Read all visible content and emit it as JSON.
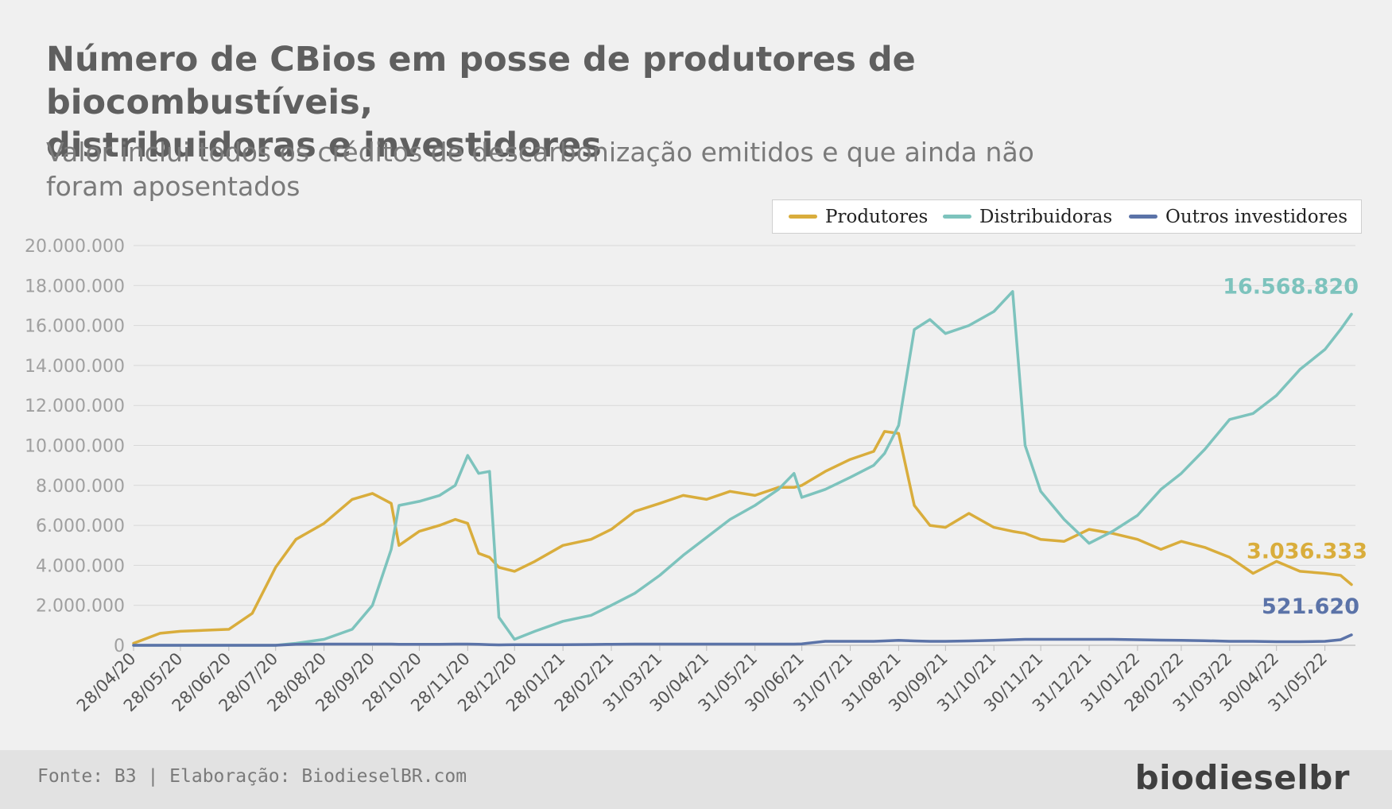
{
  "title": {
    "line1": "Número de CBios em posse de produtores de biocombustíveis,",
    "line2": "distribuidoras e investidores"
  },
  "subtitle": {
    "line1": "Valor inclui todos os créditos de descarbonização emitidos e que ainda não",
    "line2": "foram aposentados"
  },
  "legend": {
    "produtores": "Produtores",
    "distribuidoras": "Distribuidoras",
    "outros": "Outros investidores"
  },
  "colors": {
    "produtores": "#d9ad3c",
    "distribuidoras": "#7dc3bd",
    "outros": "#5b73a8",
    "grid": "#d8d8d8",
    "tick_text": "#a0a0a0"
  },
  "footer": {
    "source": "Fonte: B3 | Elaboração: BiodieselBR.com",
    "logo": "biodieselbr"
  },
  "chart_data": {
    "type": "line",
    "title": "Número de CBios em posse de produtores de biocombustíveis, distribuidoras e investidores",
    "subtitle": "Valor inclui todos os créditos de descarbonização emitidos e que ainda não foram aposentados",
    "xlabel": "",
    "ylabel": "",
    "ylim": [
      0,
      20000000
    ],
    "grid": true,
    "legend_position": "top-right",
    "y_ticks": [
      {
        "value": 0,
        "label": "0"
      },
      {
        "value": 2000000,
        "label": "2.000.000"
      },
      {
        "value": 4000000,
        "label": "4.000.000"
      },
      {
        "value": 6000000,
        "label": "6.000.000"
      },
      {
        "value": 8000000,
        "label": "8.000.000"
      },
      {
        "value": 10000000,
        "label": "10.000.000"
      },
      {
        "value": 12000000,
        "label": "12.000.000"
      },
      {
        "value": 14000000,
        "label": "14.000.000"
      },
      {
        "value": 16000000,
        "label": "16.000.000"
      },
      {
        "value": 18000000,
        "label": "18.000.000"
      },
      {
        "value": 20000000,
        "label": "20.000.000"
      }
    ],
    "x_ticks": [
      "28/04/20",
      "28/05/20",
      "28/06/20",
      "28/07/20",
      "28/08/20",
      "28/09/20",
      "28/10/20",
      "28/11/20",
      "28/12/20",
      "28/01/21",
      "28/02/21",
      "31/03/21",
      "30/04/21",
      "31/05/21",
      "30/06/21",
      "31/07/21",
      "31/08/21",
      "30/09/21",
      "31/10/21",
      "30/11/21",
      "31/12/21",
      "31/01/22",
      "28/02/22",
      "31/03/22",
      "30/04/22",
      "31/05/22"
    ],
    "x": [
      "28/04/20",
      "15/05/20",
      "28/05/20",
      "28/06/20",
      "13/07/20",
      "28/07/20",
      "10/08/20",
      "28/08/20",
      "15/09/20",
      "28/09/20",
      "10/10/20",
      "15/10/20",
      "28/10/20",
      "10/11/20",
      "20/11/20",
      "28/11/20",
      "05/12/20",
      "12/12/20",
      "18/12/20",
      "28/12/20",
      "10/01/21",
      "28/01/21",
      "15/02/21",
      "28/02/21",
      "15/03/21",
      "31/03/21",
      "15/04/21",
      "30/04/21",
      "15/05/21",
      "31/05/21",
      "15/06/21",
      "25/06/21",
      "30/06/21",
      "15/07/21",
      "31/07/21",
      "15/08/21",
      "22/08/21",
      "31/08/21",
      "10/09/21",
      "20/09/21",
      "30/09/21",
      "15/10/21",
      "31/10/21",
      "12/11/21",
      "20/11/21",
      "30/11/21",
      "15/12/21",
      "31/12/21",
      "15/01/22",
      "31/01/22",
      "15/02/22",
      "28/02/22",
      "15/03/22",
      "31/03/22",
      "15/04/22",
      "30/04/22",
      "15/05/22",
      "31/05/22",
      "10/06/22",
      "17/06/22"
    ],
    "series": [
      {
        "name": "Produtores",
        "color": "#d9ad3c",
        "end_label": "3.036.333",
        "values": [
          100000,
          600000,
          700000,
          800000,
          1600000,
          3900000,
          5300000,
          6100000,
          7300000,
          7600000,
          7100000,
          5000000,
          5700000,
          6000000,
          6300000,
          6100000,
          4600000,
          4400000,
          3900000,
          3700000,
          4200000,
          5000000,
          5300000,
          5800000,
          6700000,
          7100000,
          7500000,
          7300000,
          7700000,
          7500000,
          7900000,
          7900000,
          8000000,
          8700000,
          9300000,
          9700000,
          10700000,
          10600000,
          7000000,
          6000000,
          5900000,
          6600000,
          5900000,
          5700000,
          5600000,
          5300000,
          5200000,
          5800000,
          5600000,
          5300000,
          4800000,
          5200000,
          4900000,
          4400000,
          3600000,
          4200000,
          3700000,
          3600000,
          3500000,
          3036333
        ]
      },
      {
        "name": "Distribuidoras",
        "color": "#7dc3bd",
        "end_label": "16.568.820",
        "values": [
          0,
          0,
          0,
          0,
          0,
          0,
          100000,
          300000,
          800000,
          2000000,
          4800000,
          7000000,
          7200000,
          7500000,
          8000000,
          9500000,
          8600000,
          8700000,
          1400000,
          300000,
          700000,
          1200000,
          1500000,
          2000000,
          2600000,
          3500000,
          4500000,
          5400000,
          6300000,
          7000000,
          7800000,
          8600000,
          7400000,
          7800000,
          8400000,
          9000000,
          9600000,
          11000000,
          15800000,
          16300000,
          15600000,
          16000000,
          16700000,
          17700000,
          10000000,
          7700000,
          6300000,
          5100000,
          5700000,
          6500000,
          7800000,
          8600000,
          9800000,
          11300000,
          11600000,
          12500000,
          13800000,
          14800000,
          15800000,
          16568820
        ]
      },
      {
        "name": "Outros investidores",
        "color": "#5b73a8",
        "end_label": "521.620",
        "values": [
          0,
          0,
          0,
          0,
          0,
          0,
          50000,
          60000,
          60000,
          60000,
          60000,
          50000,
          50000,
          50000,
          60000,
          60000,
          50000,
          30000,
          20000,
          30000,
          30000,
          30000,
          40000,
          50000,
          60000,
          60000,
          60000,
          60000,
          60000,
          60000,
          60000,
          60000,
          70000,
          200000,
          200000,
          200000,
          220000,
          250000,
          220000,
          200000,
          200000,
          220000,
          250000,
          280000,
          300000,
          300000,
          300000,
          300000,
          300000,
          280000,
          260000,
          250000,
          230000,
          200000,
          200000,
          180000,
          180000,
          200000,
          280000,
          521620
        ]
      }
    ]
  }
}
